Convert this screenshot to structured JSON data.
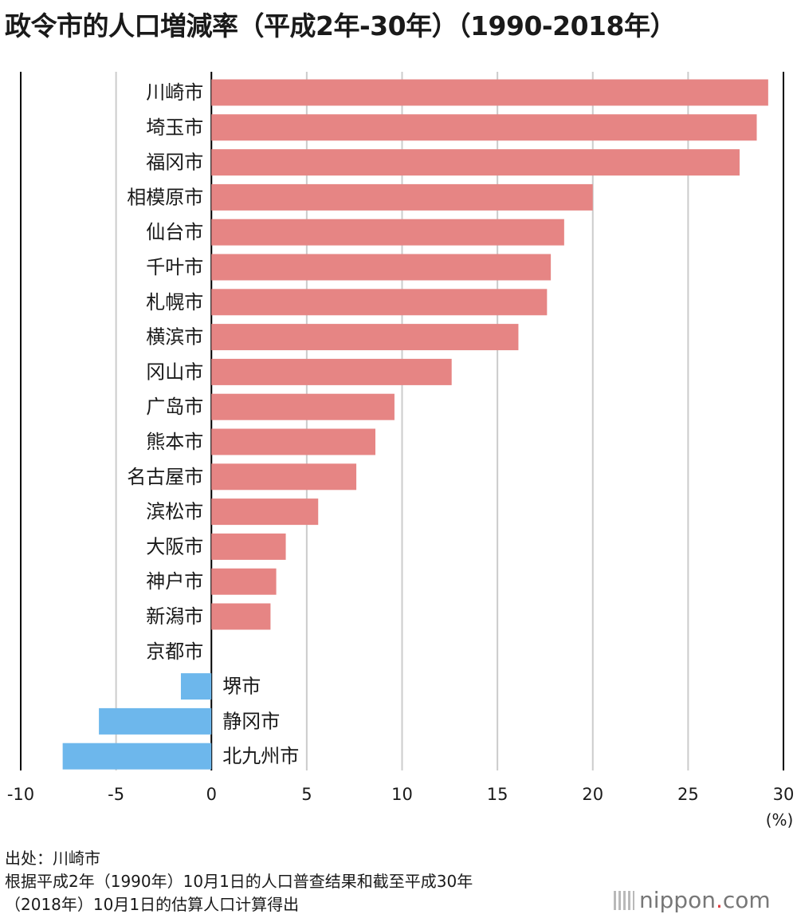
{
  "title": "政令市的人口増減率（平成2年-30年）（1990-2018年）",
  "unit_label": "(%)",
  "source_lines": [
    "出处：川崎市",
    "根据平成2年（1990年）10月1日的人口普查结果和截至平成30年",
    "（2018年）10月1日的估算人口计算得出"
  ],
  "logo": {
    "main": "nippon",
    "dot": ".",
    "suffix": "com"
  },
  "colors": {
    "positive": "#e68584",
    "negative": "#6db7ec",
    "grid": "#cccccc",
    "axis": "#000000"
  },
  "chart_data": {
    "type": "bar",
    "orientation": "horizontal",
    "title": "政令市的人口増減率（平成2年-30年）（1990-2018年）",
    "xlabel": "(%)",
    "xlim": [
      -10,
      30
    ],
    "xticks": [
      -10,
      -5,
      0,
      5,
      10,
      15,
      20,
      25,
      30
    ],
    "grid": true,
    "categories": [
      "川崎市",
      "埼玉市",
      "福冈市",
      "相模原市",
      "仙台市",
      "千叶市",
      "札幌市",
      "横滨市",
      "冈山市",
      "广岛市",
      "熊本市",
      "名古屋市",
      "滨松市",
      "大阪市",
      "神户市",
      "新潟市",
      "京都市",
      "堺市",
      "静冈市",
      "北九州市"
    ],
    "values": [
      29.2,
      28.6,
      27.7,
      20.0,
      18.5,
      17.8,
      17.6,
      16.1,
      12.6,
      9.6,
      8.6,
      7.6,
      5.6,
      3.9,
      3.4,
      3.1,
      0.0,
      -1.6,
      -5.9,
      -7.8
    ]
  }
}
